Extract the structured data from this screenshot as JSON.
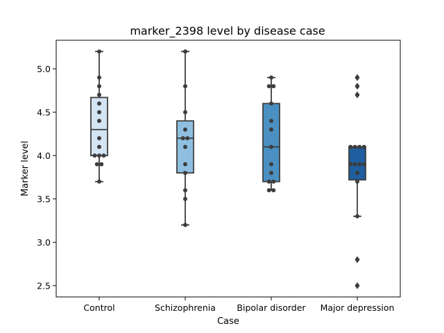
{
  "chart_data": {
    "type": "box",
    "title": "marker_2398 level by disease case",
    "xlabel": "Case",
    "ylabel": "Marker level",
    "ylim": [
      2.37,
      5.33
    ],
    "yticks": [
      "2.5",
      "3.0",
      "3.5",
      "4.0",
      "4.5",
      "5.0"
    ],
    "grid": false,
    "categories": [
      "Control",
      "Schizophrenia",
      "Bipolar disorder",
      "Major depression"
    ],
    "colors": [
      "#d3e4f3",
      "#8fbfe0",
      "#4a90c2",
      "#1f5f9f"
    ],
    "boxes": [
      {
        "q1": 4.0,
        "median": 4.3,
        "q3": 4.67,
        "whisker_low": 3.7,
        "whisker_high": 5.2,
        "outliers": []
      },
      {
        "q1": 3.8,
        "median": 4.2,
        "q3": 4.4,
        "whisker_low": 3.2,
        "whisker_high": 5.2,
        "outliers": []
      },
      {
        "q1": 3.7,
        "median": 4.1,
        "q3": 4.6,
        "whisker_low": 3.6,
        "whisker_high": 4.9,
        "outliers": []
      },
      {
        "q1": 3.72,
        "median": 4.1,
        "q3": 4.1,
        "whisker_low": 3.3,
        "whisker_high": 4.1,
        "outliers": [
          4.9,
          4.8,
          4.7,
          2.8,
          2.5
        ]
      }
    ],
    "points": [
      [
        5.2,
        4.9,
        4.8,
        4.7,
        4.6,
        4.5,
        4.4,
        4.2,
        4.1,
        4.0,
        4.0,
        4.0,
        3.9,
        3.9,
        3.7
      ],
      [
        5.2,
        4.8,
        4.5,
        4.3,
        4.2,
        4.2,
        4.1,
        3.9,
        3.8,
        3.6,
        3.5,
        3.2
      ],
      [
        4.9,
        4.8,
        4.8,
        4.6,
        4.4,
        4.3,
        4.1,
        3.9,
        3.8,
        3.7,
        3.7,
        3.6,
        3.6
      ],
      [
        4.9,
        4.8,
        4.7,
        4.1,
        4.1,
        4.1,
        4.1,
        3.9,
        3.9,
        3.9,
        3.9,
        3.8,
        3.7,
        3.3,
        2.8,
        2.5
      ]
    ]
  }
}
